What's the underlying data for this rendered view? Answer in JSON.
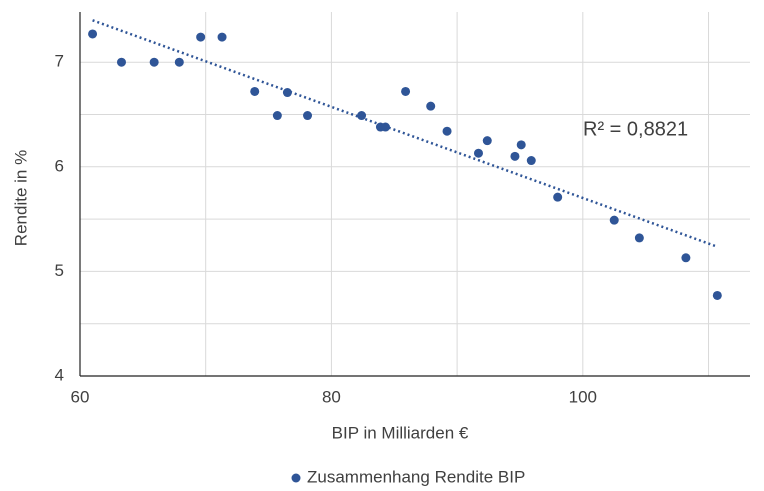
{
  "chart_data": {
    "type": "scatter",
    "x_label": "BIP in Milliarden €",
    "y_label": "Rendite in %",
    "annotation": "R² = 0,8821",
    "trendline": true,
    "grid": true,
    "legend": "bottom",
    "series": [
      {
        "name": "Zusammenhang Rendite BIP",
        "color": "#2f5597",
        "x": [
          61.0,
          63.3,
          65.9,
          67.9,
          69.6,
          71.3,
          73.9,
          76.5,
          75.7,
          78.1,
          82.4,
          83.9,
          84.3,
          85.9,
          87.9,
          89.2,
          91.7,
          92.4,
          94.6,
          95.1,
          95.9,
          98.0,
          102.5,
          104.5,
          108.2,
          110.7
        ],
        "values": [
          7.27,
          7.0,
          7.0,
          7.0,
          7.24,
          7.24,
          6.72,
          6.71,
          6.49,
          6.49,
          6.49,
          6.38,
          6.38,
          6.72,
          6.58,
          6.34,
          6.13,
          6.25,
          6.1,
          6.21,
          6.06,
          5.71,
          5.49,
          5.32,
          5.13,
          4.77
        ]
      }
    ],
    "xlim": [
      60,
      113.3
    ],
    "xticks": [
      60,
      80,
      100
    ],
    "x_minor_grid": [
      70,
      90,
      110
    ],
    "ylim": [
      4,
      7.48
    ],
    "yticks": [
      4,
      5,
      6,
      7
    ],
    "y_minor_grid": [
      4.5,
      5.5,
      6.5
    ]
  }
}
